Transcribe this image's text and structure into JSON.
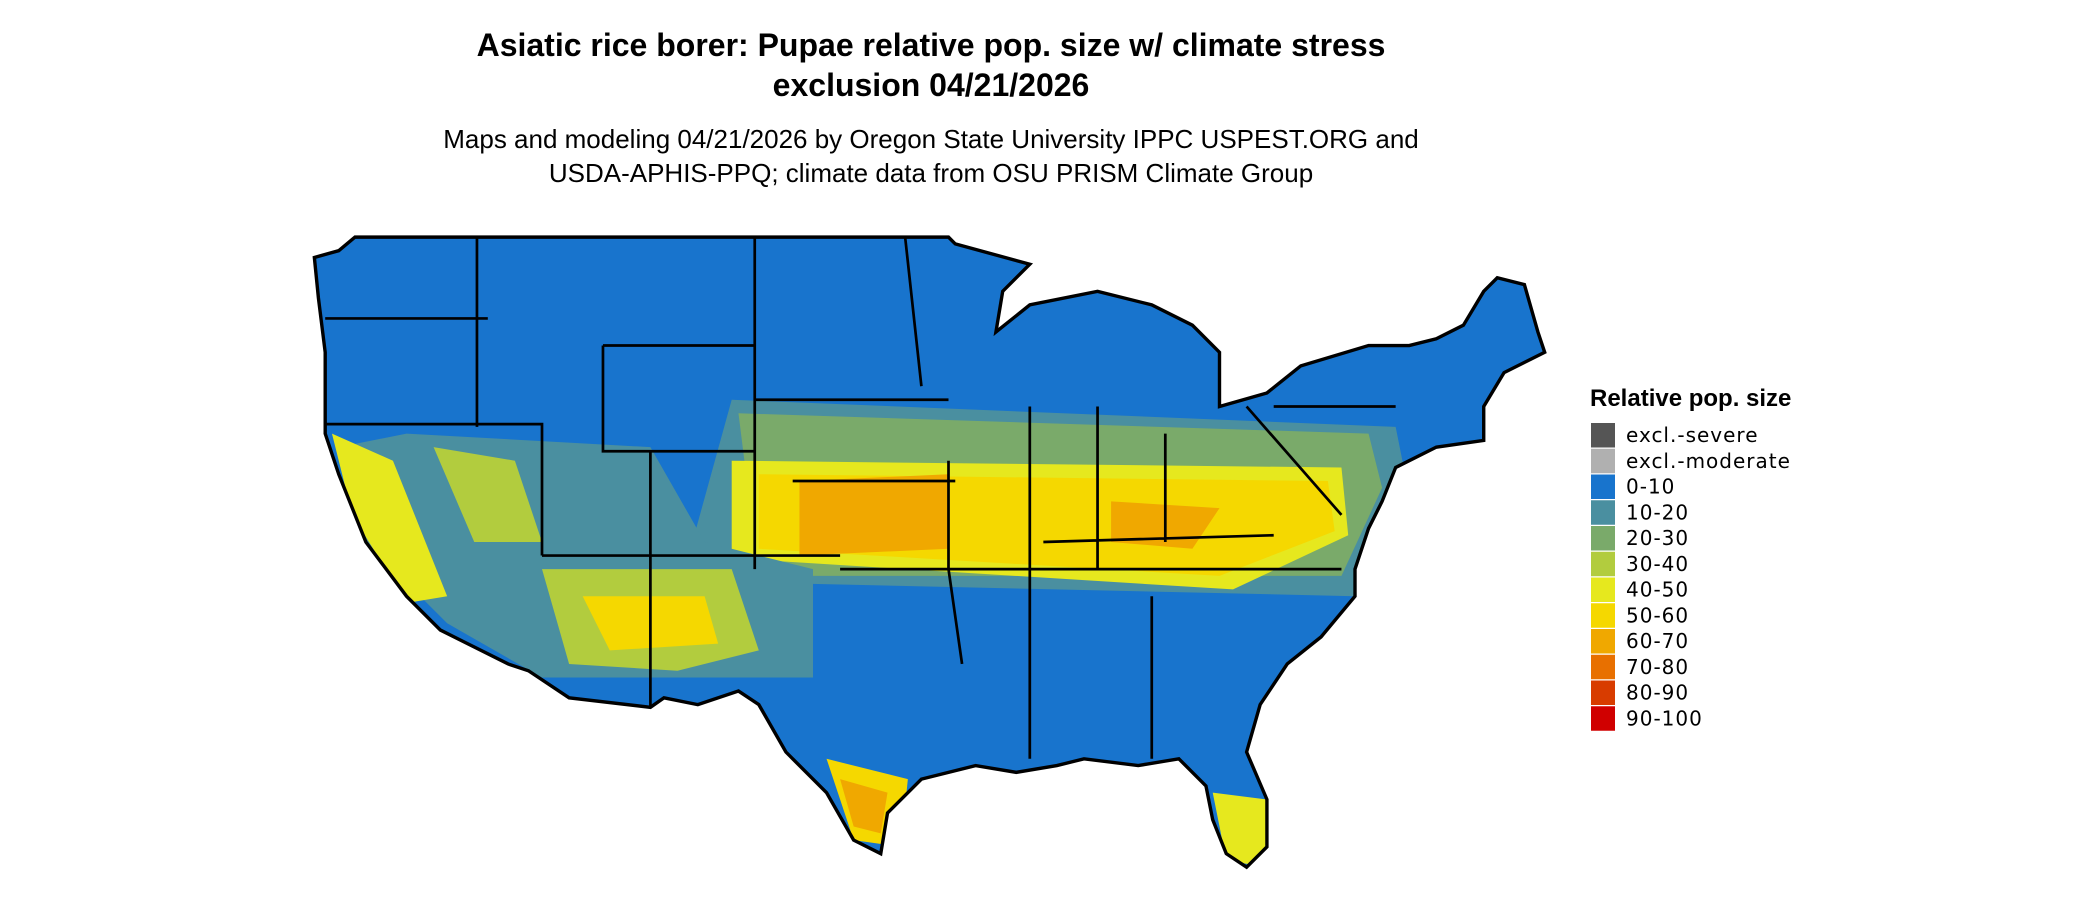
{
  "header": {
    "title_lines": [
      "Asiatic rice borer: Pupae relative pop. size w/ climate stress",
      "exclusion 04/21/2026"
    ],
    "subtitle_lines": [
      "Maps and modeling 04/21/2026 by Oregon State University IPPC USPEST.ORG and",
      "USDA-APHIS-PPQ; climate data from OSU PRISM Climate Group"
    ]
  },
  "legend": {
    "title": "Relative pop. size",
    "items": [
      {
        "label": "excl.-severe",
        "color": "#555555"
      },
      {
        "label": "excl.-moderate",
        "color": "#b0b0b0"
      },
      {
        "label": "0-10",
        "color": "#1874cd"
      },
      {
        "label": "10-20",
        "color": "#4a8fa0"
      },
      {
        "label": "20-30",
        "color": "#7aaa6a"
      },
      {
        "label": "30-40",
        "color": "#b2cc3e"
      },
      {
        "label": "40-50",
        "color": "#e6e81e"
      },
      {
        "label": "50-60",
        "color": "#f5d800"
      },
      {
        "label": "60-70",
        "color": "#f0a800"
      },
      {
        "label": "70-80",
        "color": "#e87000"
      },
      {
        "label": "80-90",
        "color": "#d83c00"
      },
      {
        "label": "90-100",
        "color": "#d00000"
      }
    ]
  }
}
